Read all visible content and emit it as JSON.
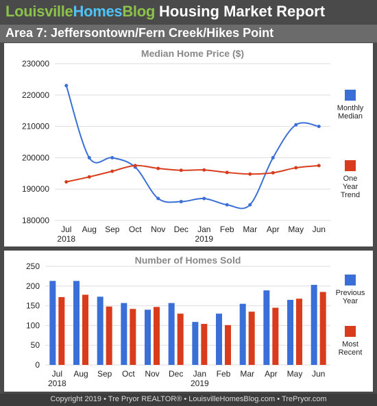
{
  "header": {
    "logo_part1": "Louisville",
    "logo_part2": "Homes",
    "logo_part3": "Blog",
    "report_title": "Housing Market Report"
  },
  "area_title": "Area 7: Jeffersontown/Fern Creek/Hikes Point",
  "footer": "Copyright 2019 • Tre Pryor REALTOR® • LouisvilleHomesBlog.com • TrePryor.com",
  "colors": {
    "blue": "#3a6fd8",
    "red": "#d83c1c",
    "grid": "#dddddd",
    "title_gray": "#888888"
  },
  "chart_data": [
    {
      "type": "line",
      "title": "Median Home Price ($)",
      "categories": [
        "Jul",
        "Aug",
        "Sep",
        "Oct",
        "Nov",
        "Dec",
        "Jan",
        "Feb",
        "Mar",
        "Apr",
        "May",
        "Jun"
      ],
      "year_labels": [
        {
          "index": 0,
          "label": "2018"
        },
        {
          "index": 6,
          "label": "2019"
        }
      ],
      "ylim": [
        180000,
        230000
      ],
      "yticks": [
        180000,
        190000,
        200000,
        210000,
        220000,
        230000
      ],
      "grid": true,
      "legend_position": "right",
      "series": [
        {
          "name": "Monthly Median",
          "legend_lines": [
            "Monthly",
            "Median"
          ],
          "color": "#3a6fd8",
          "values": [
            223000,
            200000,
            200000,
            197000,
            187000,
            186000,
            187000,
            185000,
            185000,
            200000,
            210500,
            210000
          ]
        },
        {
          "name": "One Year Trend",
          "legend_lines": [
            "One",
            "Year",
            "Trend"
          ],
          "color": "#d83c1c",
          "values": [
            192300,
            193900,
            195700,
            197500,
            196600,
            196000,
            196100,
            195300,
            194800,
            195200,
            196800,
            197500
          ]
        }
      ]
    },
    {
      "type": "bar",
      "title": "Number of Homes Sold",
      "categories": [
        "Jul",
        "Aug",
        "Sep",
        "Oct",
        "Nov",
        "Dec",
        "Jan",
        "Feb",
        "Mar",
        "Apr",
        "May",
        "Jun"
      ],
      "year_labels": [
        {
          "index": 0,
          "label": "2018"
        },
        {
          "index": 6,
          "label": "2019"
        }
      ],
      "ylim": [
        0,
        250
      ],
      "yticks": [
        0,
        50,
        100,
        150,
        200,
        250
      ],
      "grid": true,
      "legend_position": "right",
      "series": [
        {
          "name": "Previous Year",
          "legend_lines": [
            "Previous",
            "Year"
          ],
          "color": "#3a6fd8",
          "values": [
            213,
            213,
            173,
            157,
            140,
            157,
            109,
            130,
            155,
            189,
            165,
            203
          ]
        },
        {
          "name": "Most Recent",
          "legend_lines": [
            "Most",
            "Recent"
          ],
          "color": "#d83c1c",
          "values": [
            172,
            178,
            148,
            142,
            147,
            130,
            104,
            101,
            135,
            145,
            168,
            185
          ]
        }
      ]
    }
  ]
}
